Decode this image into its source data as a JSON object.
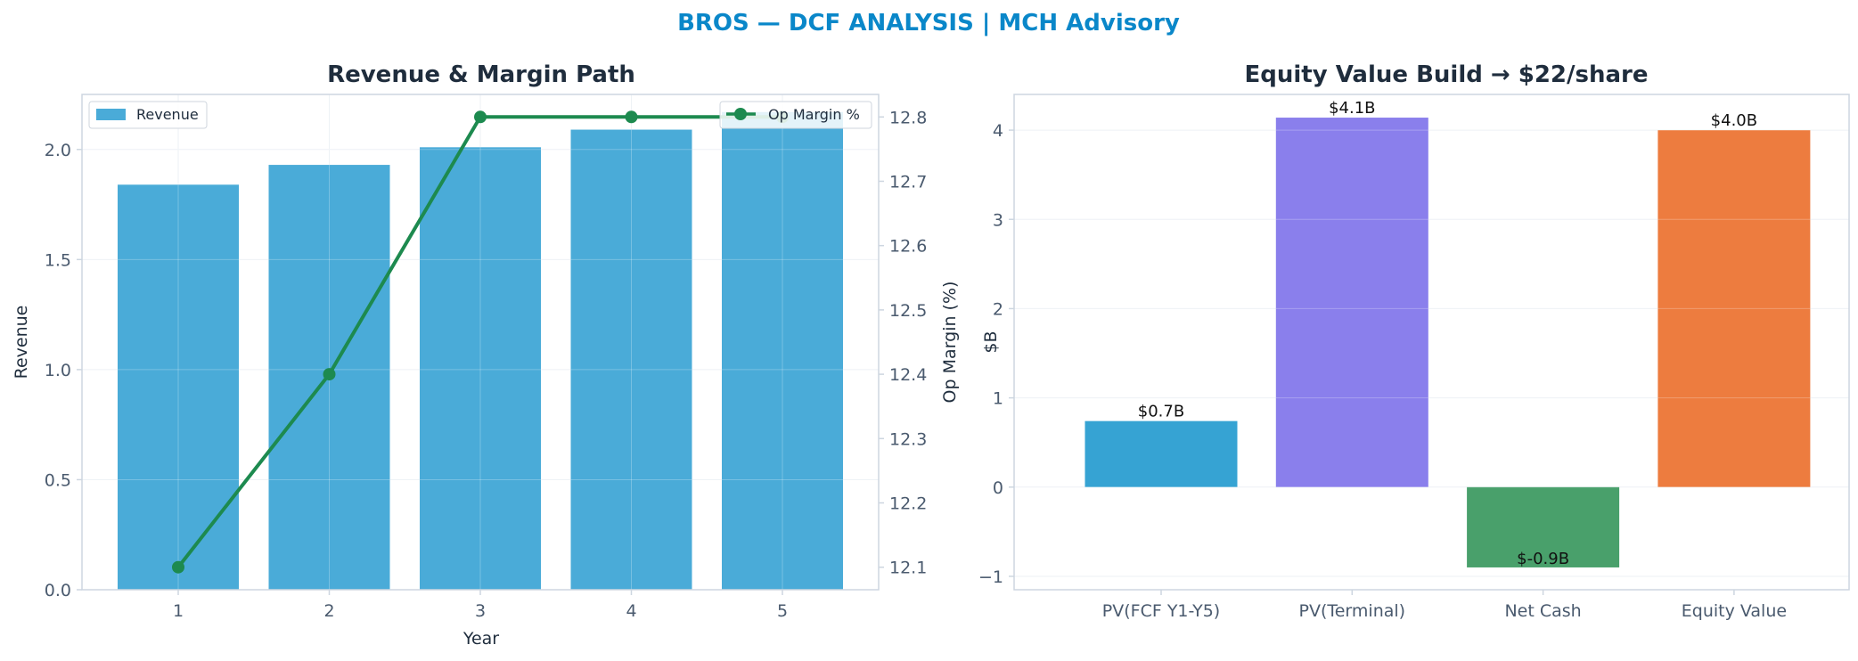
{
  "suptitle": "BROS — DCF ANALYSIS | MCH Advisory",
  "colors": {
    "title_accent": "#0a87c9",
    "text_dark": "#1f2d3d",
    "tick_text": "#4a5a6e",
    "axis_line": "#cdd6e0",
    "grid": "#e9eef3",
    "revenue_bar": "#4aabd8",
    "margin_line": "#1d8a4f"
  },
  "chart_data": [
    {
      "type": "bar",
      "title": "Revenue & Margin Path",
      "xlabel": "Year",
      "ylabel": "Revenue",
      "y2label": "Op Margin (%)",
      "categories": [
        "1",
        "2",
        "3",
        "4",
        "5"
      ],
      "ylim": [
        0,
        2.25
      ],
      "y2lim": [
        12.065,
        12.835
      ],
      "yticks": [
        0.0,
        0.5,
        1.0,
        1.5,
        2.0
      ],
      "ytick_labels": [
        "0.0",
        "0.5",
        "1.0",
        "1.5",
        "2.0"
      ],
      "y2ticks": [
        12.1,
        12.2,
        12.3,
        12.4,
        12.5,
        12.6,
        12.7,
        12.8
      ],
      "y2tick_labels": [
        "12.1",
        "12.2",
        "12.3",
        "12.4",
        "12.5",
        "12.6",
        "12.7",
        "12.8"
      ],
      "grid": true,
      "series": [
        {
          "name": "Revenue",
          "type": "bar",
          "axis": "left",
          "values": [
            1.84,
            1.93,
            2.01,
            2.09,
            2.17
          ]
        },
        {
          "name": "Op Margin %",
          "type": "line",
          "axis": "right",
          "values": [
            12.1,
            12.4,
            12.8,
            12.8,
            12.8
          ]
        }
      ],
      "legend": [
        {
          "label": "Revenue",
          "placement": "top-left"
        },
        {
          "label": "Op Margin %",
          "placement": "top-right"
        }
      ]
    },
    {
      "type": "bar",
      "title": "Equity Value Build → $22/share",
      "xlabel": "",
      "ylabel": "$B",
      "categories": [
        "PV(FCF Y1-Y5)",
        "PV(Terminal)",
        "Net Cash",
        "Equity Value"
      ],
      "values": [
        0.74,
        4.14,
        -0.9,
        4.0
      ],
      "data_labels": [
        "$0.7B",
        "$4.1B",
        "$-0.9B",
        "$4.0B"
      ],
      "bar_colors": [
        "#36a3d3",
        "#8a7fec",
        "#49a06b",
        "#ed7c3f"
      ],
      "ylim": [
        -1.15,
        4.4
      ],
      "yticks": [
        -1,
        0,
        1,
        2,
        3,
        4
      ],
      "ytick_labels": [
        "−1",
        "0",
        "1",
        "2",
        "3",
        "4"
      ],
      "grid": true
    }
  ]
}
